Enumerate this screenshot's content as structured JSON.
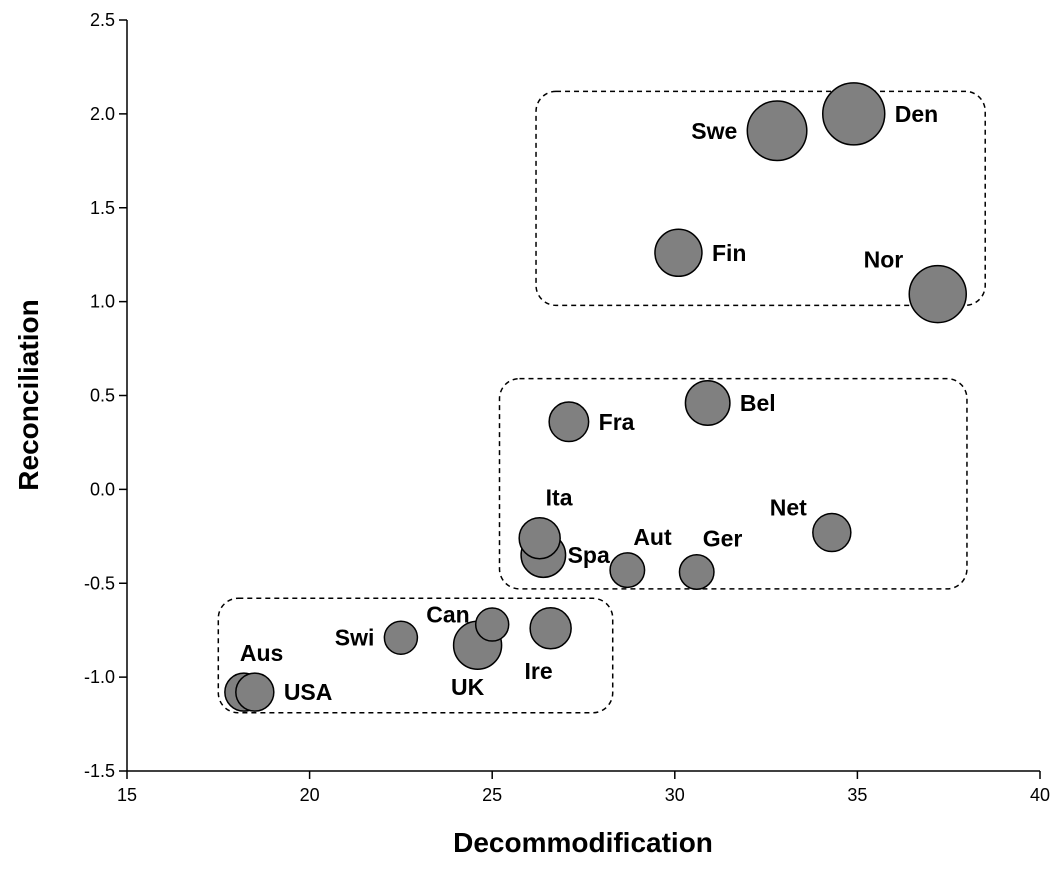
{
  "chart_data": {
    "type": "scatter",
    "title": "",
    "xlabel": "Decommodification",
    "ylabel": "Reconciliation",
    "xlim": [
      15,
      40
    ],
    "ylim": [
      -1.5,
      2.5
    ],
    "xticks": [
      "15",
      "20",
      "25",
      "30",
      "35",
      "40"
    ],
    "yticks": [
      "-1.5",
      "-1.0",
      "-0.5",
      "0.0",
      "0.5",
      "1.0",
      "1.5",
      "2.0",
      "2.5"
    ],
    "grid": false,
    "marker_color": "#808080",
    "points": [
      {
        "label": "Den",
        "x": 34.9,
        "y": 2.0,
        "size": 1.0
      },
      {
        "label": "Swe",
        "x": 32.8,
        "y": 1.91,
        "size": 0.95
      },
      {
        "label": "Fin",
        "x": 30.1,
        "y": 1.26,
        "size": 0.7
      },
      {
        "label": "Nor",
        "x": 37.2,
        "y": 1.04,
        "size": 0.9
      },
      {
        "label": "Bel",
        "x": 30.9,
        "y": 0.46,
        "size": 0.65
      },
      {
        "label": "Fra",
        "x": 27.1,
        "y": 0.36,
        "size": 0.55
      },
      {
        "label": "Ita",
        "x": 26.3,
        "y": -0.26,
        "size": 0.58
      },
      {
        "label": "Spa",
        "x": 26.4,
        "y": -0.35,
        "size": 0.65
      },
      {
        "label": "Aut",
        "x": 28.7,
        "y": -0.43,
        "size": 0.45
      },
      {
        "label": "Ger",
        "x": 30.6,
        "y": -0.44,
        "size": 0.45
      },
      {
        "label": "Net",
        "x": 34.3,
        "y": -0.23,
        "size": 0.52
      },
      {
        "label": "Can",
        "x": 25.0,
        "y": -0.72,
        "size": 0.42
      },
      {
        "label": "Swi",
        "x": 22.5,
        "y": -0.79,
        "size": 0.42
      },
      {
        "label": "Ire",
        "x": 26.6,
        "y": -0.74,
        "size": 0.58
      },
      {
        "label": "UK",
        "x": 24.6,
        "y": -0.83,
        "size": 0.72
      },
      {
        "label": "Aus",
        "x": 18.2,
        "y": -1.08,
        "size": 0.52
      },
      {
        "label": "USA",
        "x": 18.5,
        "y": -1.08,
        "size": 0.52
      }
    ],
    "groups": [
      {
        "x": [
          26.2,
          38.5
        ],
        "y": [
          0.98,
          2.12
        ]
      },
      {
        "x": [
          25.2,
          38.0
        ],
        "y": [
          -0.53,
          0.59
        ]
      },
      {
        "x": [
          17.5,
          28.3
        ],
        "y": [
          -1.19,
          -0.58
        ]
      }
    ]
  }
}
